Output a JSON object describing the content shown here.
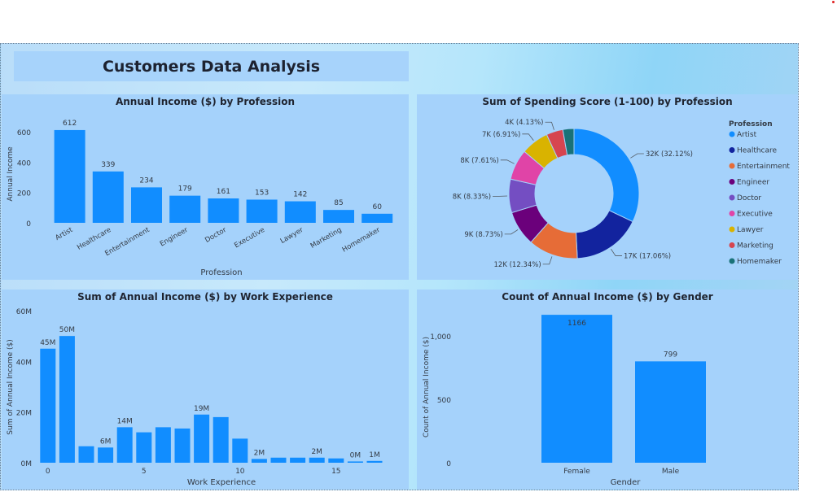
{
  "dashboard": {
    "title": "Customers Data Analysis"
  },
  "colors": {
    "bar": "#118dff",
    "profession": [
      "#118dff",
      "#12239e",
      "#e66c37",
      "#6b007b",
      "#744ec2",
      "#e044a7",
      "#d9b300",
      "#d64550",
      "#197278"
    ]
  },
  "chart_data": [
    {
      "id": "income-by-profession",
      "type": "bar",
      "title": "Annual Income ($) by Profession",
      "xlabel": "Profession",
      "ylabel": "Annual Income",
      "categories": [
        "Artist",
        "Healthcare",
        "Entertainment",
        "Engineer",
        "Doctor",
        "Executive",
        "Lawyer",
        "Marketing",
        "Homemaker"
      ],
      "values": [
        612,
        339,
        234,
        179,
        161,
        153,
        142,
        85,
        60
      ],
      "data_labels": [
        "612",
        "339",
        "234",
        "179",
        "161",
        "153",
        "142",
        "85",
        "60"
      ],
      "yticks": [
        "0",
        "200",
        "400",
        "600"
      ],
      "ylim": [
        0,
        660
      ],
      "grid": false
    },
    {
      "id": "spending-by-profession",
      "type": "pie",
      "donut": true,
      "title": "Sum of Spending Score (1-100) by Profession",
      "legend_title": "Profession",
      "legend_position": "right",
      "categories": [
        "Artist",
        "Healthcare",
        "Entertainment",
        "Engineer",
        "Doctor",
        "Executive",
        "Lawyer",
        "Marketing",
        "Homemaker"
      ],
      "percentages": [
        32.12,
        17.06,
        12.34,
        8.73,
        8.33,
        7.61,
        6.91,
        4.13,
        2.77
      ],
      "labels": [
        "32K (32.12%)",
        "17K (17.06%)",
        "12K (12.34%)",
        "9K (8.73%)",
        "8K (8.33%)",
        "8K (7.61%)",
        "7K (6.91%)",
        "4K (4.13%)",
        ""
      ]
    },
    {
      "id": "income-by-experience",
      "type": "bar",
      "title": "Sum of Annual Income ($) by Work Experience",
      "xlabel": "Work Experience",
      "ylabel": "Sum of Annual Income ($)",
      "x": [
        0,
        1,
        2,
        3,
        4,
        5,
        6,
        7,
        8,
        9,
        10,
        11,
        12,
        13,
        14,
        15,
        16,
        17
      ],
      "values": [
        45,
        50,
        6.5,
        6,
        14,
        12,
        14,
        13.5,
        19,
        18,
        9.5,
        1.5,
        2,
        2,
        2,
        1.7,
        0.5,
        0.7
      ],
      "value_unit": "M",
      "data_labels": [
        "45M",
        "50M",
        "",
        "6M",
        "14M",
        "",
        "",
        "",
        "19M",
        "",
        "",
        "2M",
        "",
        "",
        "2M",
        "",
        "0M",
        "1M"
      ],
      "xticks": [
        "0",
        "5",
        "10",
        "15"
      ],
      "yticks": [
        "0M",
        "20M",
        "40M",
        "60M"
      ],
      "ylim": [
        0,
        60
      ],
      "grid": false
    },
    {
      "id": "count-by-gender",
      "type": "bar",
      "title": "Count of Annual Income ($) by Gender",
      "xlabel": "Gender",
      "ylabel": "Count of Annual Income ($)",
      "categories": [
        "Female",
        "Male"
      ],
      "values": [
        1166,
        799
      ],
      "data_labels": [
        "1166",
        "799"
      ],
      "yticks": [
        "0",
        "500",
        "1,000"
      ],
      "ylim": [
        0,
        1200
      ],
      "grid": false
    }
  ]
}
